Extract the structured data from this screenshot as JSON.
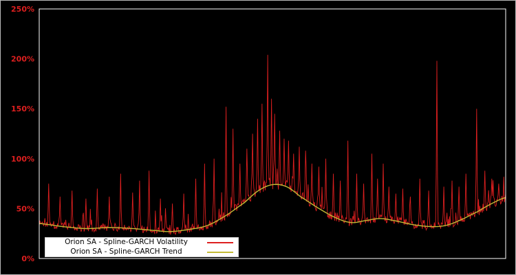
{
  "chart": {
    "background_color": "#000000",
    "axis_border_color": "#ffffff",
    "tick_label_color": "#dd1f1f"
  },
  "chart_data": {
    "type": "line",
    "title": "",
    "xlabel": "",
    "ylabel": "",
    "ylim": [
      0,
      2.5
    ],
    "grid": false,
    "legend_position": "lower left",
    "yticks": [
      {
        "label": "0%",
        "value": 0
      },
      {
        "label": "50%",
        "value": 0.5
      },
      {
        "label": "100%",
        "value": 1.0
      },
      {
        "label": "150%",
        "value": 1.5
      },
      {
        "label": "200%",
        "value": 2.0
      },
      {
        "label": "250%",
        "value": 2.5
      }
    ],
    "series": [
      {
        "name": "Orion SA - Spline-GARCH Volatility",
        "color": "#dd1f1f",
        "style": "noisy-line"
      },
      {
        "name": "Orion SA - Spline-GARCH Trend",
        "color": "#c3ba35",
        "style": "smooth-line"
      }
    ],
    "trend_points": [
      [
        0.0,
        0.35
      ],
      [
        0.05,
        0.32
      ],
      [
        0.1,
        0.3
      ],
      [
        0.15,
        0.31
      ],
      [
        0.2,
        0.3
      ],
      [
        0.25,
        0.28
      ],
      [
        0.28,
        0.27
      ],
      [
        0.32,
        0.29
      ],
      [
        0.36,
        0.33
      ],
      [
        0.4,
        0.43
      ],
      [
        0.44,
        0.56
      ],
      [
        0.47,
        0.68
      ],
      [
        0.5,
        0.74
      ],
      [
        0.53,
        0.72
      ],
      [
        0.56,
        0.62
      ],
      [
        0.6,
        0.5
      ],
      [
        0.64,
        0.4
      ],
      [
        0.67,
        0.36
      ],
      [
        0.7,
        0.38
      ],
      [
        0.73,
        0.4
      ],
      [
        0.76,
        0.38
      ],
      [
        0.8,
        0.34
      ],
      [
        0.84,
        0.32
      ],
      [
        0.87,
        0.33
      ],
      [
        0.9,
        0.38
      ],
      [
        0.94,
        0.47
      ],
      [
        0.97,
        0.55
      ],
      [
        1.0,
        0.61
      ]
    ],
    "volatility_spikes": [
      {
        "x": 0.02,
        "v": 0.75
      },
      {
        "x": 0.045,
        "v": 0.62
      },
      {
        "x": 0.07,
        "v": 0.68
      },
      {
        "x": 0.1,
        "v": 0.6
      },
      {
        "x": 0.125,
        "v": 0.7
      },
      {
        "x": 0.15,
        "v": 0.62
      },
      {
        "x": 0.175,
        "v": 0.85
      },
      {
        "x": 0.2,
        "v": 0.66
      },
      {
        "x": 0.215,
        "v": 0.78
      },
      {
        "x": 0.235,
        "v": 0.88
      },
      {
        "x": 0.26,
        "v": 0.6
      },
      {
        "x": 0.285,
        "v": 0.55
      },
      {
        "x": 0.31,
        "v": 0.65
      },
      {
        "x": 0.335,
        "v": 0.8
      },
      {
        "x": 0.355,
        "v": 0.95
      },
      {
        "x": 0.375,
        "v": 1.0
      },
      {
        "x": 0.4,
        "v": 1.52
      },
      {
        "x": 0.415,
        "v": 1.3
      },
      {
        "x": 0.43,
        "v": 0.95
      },
      {
        "x": 0.445,
        "v": 1.1
      },
      {
        "x": 0.458,
        "v": 1.25
      },
      {
        "x": 0.468,
        "v": 1.4
      },
      {
        "x": 0.478,
        "v": 1.55
      },
      {
        "x": 0.49,
        "v": 2.04
      },
      {
        "x": 0.498,
        "v": 1.6
      },
      {
        "x": 0.505,
        "v": 1.45
      },
      {
        "x": 0.515,
        "v": 1.28
      },
      {
        "x": 0.525,
        "v": 1.2
      },
      {
        "x": 0.535,
        "v": 1.18
      },
      {
        "x": 0.545,
        "v": 1.05
      },
      {
        "x": 0.557,
        "v": 1.12
      },
      {
        "x": 0.571,
        "v": 1.08
      },
      {
        "x": 0.585,
        "v": 0.95
      },
      {
        "x": 0.6,
        "v": 0.92
      },
      {
        "x": 0.615,
        "v": 1.0
      },
      {
        "x": 0.63,
        "v": 0.85
      },
      {
        "x": 0.645,
        "v": 0.78
      },
      {
        "x": 0.662,
        "v": 1.18
      },
      {
        "x": 0.68,
        "v": 0.85
      },
      {
        "x": 0.695,
        "v": 0.75
      },
      {
        "x": 0.713,
        "v": 1.05
      },
      {
        "x": 0.725,
        "v": 0.8
      },
      {
        "x": 0.737,
        "v": 0.95
      },
      {
        "x": 0.75,
        "v": 0.72
      },
      {
        "x": 0.765,
        "v": 0.65
      },
      {
        "x": 0.78,
        "v": 0.7
      },
      {
        "x": 0.795,
        "v": 0.62
      },
      {
        "x": 0.816,
        "v": 0.8
      },
      {
        "x": 0.835,
        "v": 0.68
      },
      {
        "x": 0.853,
        "v": 1.98
      },
      {
        "x": 0.868,
        "v": 0.72
      },
      {
        "x": 0.885,
        "v": 0.78
      },
      {
        "x": 0.9,
        "v": 0.72
      },
      {
        "x": 0.915,
        "v": 0.85
      },
      {
        "x": 0.938,
        "v": 1.5
      },
      {
        "x": 0.955,
        "v": 0.88
      },
      {
        "x": 0.97,
        "v": 0.8
      },
      {
        "x": 0.985,
        "v": 0.75
      }
    ],
    "volatility_noise": {
      "seed": 1337,
      "num_points": 740,
      "amplitude": 0.05,
      "extra_spike_prob": 0.1,
      "extra_spike_gain": 0.35
    }
  },
  "legend": {
    "items": [
      {
        "label": "Orion SA - Spline-GARCH Volatility",
        "color": "#dd1f1f"
      },
      {
        "label": "Orion SA - Spline-GARCH Trend",
        "color": "#c3ba35"
      }
    ]
  }
}
